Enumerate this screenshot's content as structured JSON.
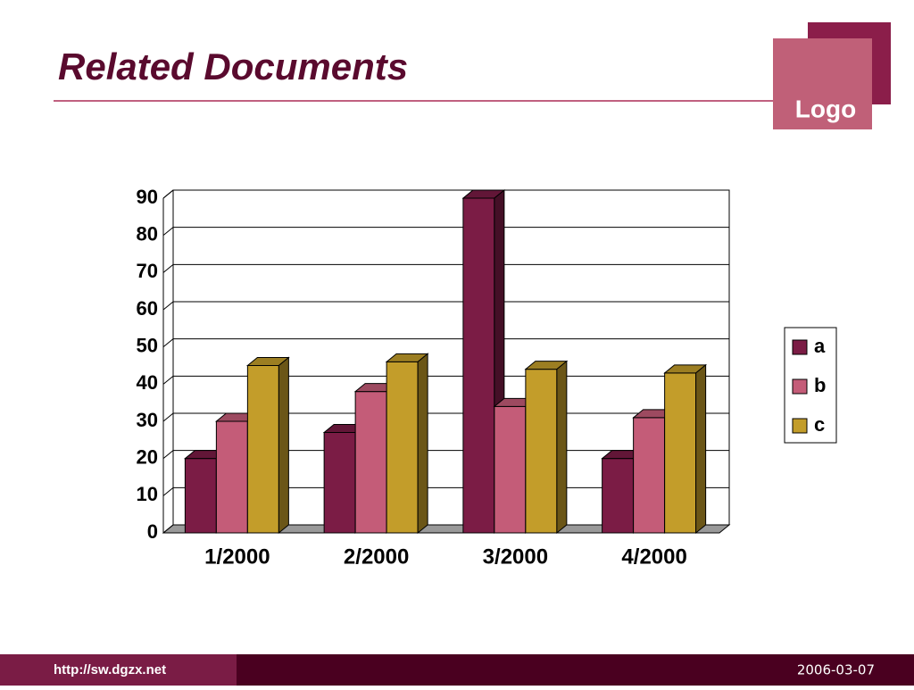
{
  "header": {
    "title": "Related Documents",
    "logo": "Logo"
  },
  "footer": {
    "url": "http://sw.dgzx.net",
    "date": "2006-03-07"
  },
  "chart_data": {
    "type": "bar3d",
    "categories": [
      "1/2000",
      "2/2000",
      "3/2000",
      "4/2000"
    ],
    "series": [
      {
        "name": "a",
        "color": "#7b1c45",
        "values": [
          20,
          27,
          90,
          20
        ]
      },
      {
        "name": "b",
        "color": "#c45c78",
        "values": [
          30,
          38,
          34,
          31
        ]
      },
      {
        "name": "c",
        "color": "#c39d2a",
        "values": [
          45,
          46,
          44,
          43
        ]
      }
    ],
    "ylim": [
      0,
      90
    ],
    "yticks": [
      0,
      10,
      20,
      30,
      40,
      50,
      60,
      70,
      80,
      90
    ],
    "grid": true,
    "legend": "right"
  }
}
